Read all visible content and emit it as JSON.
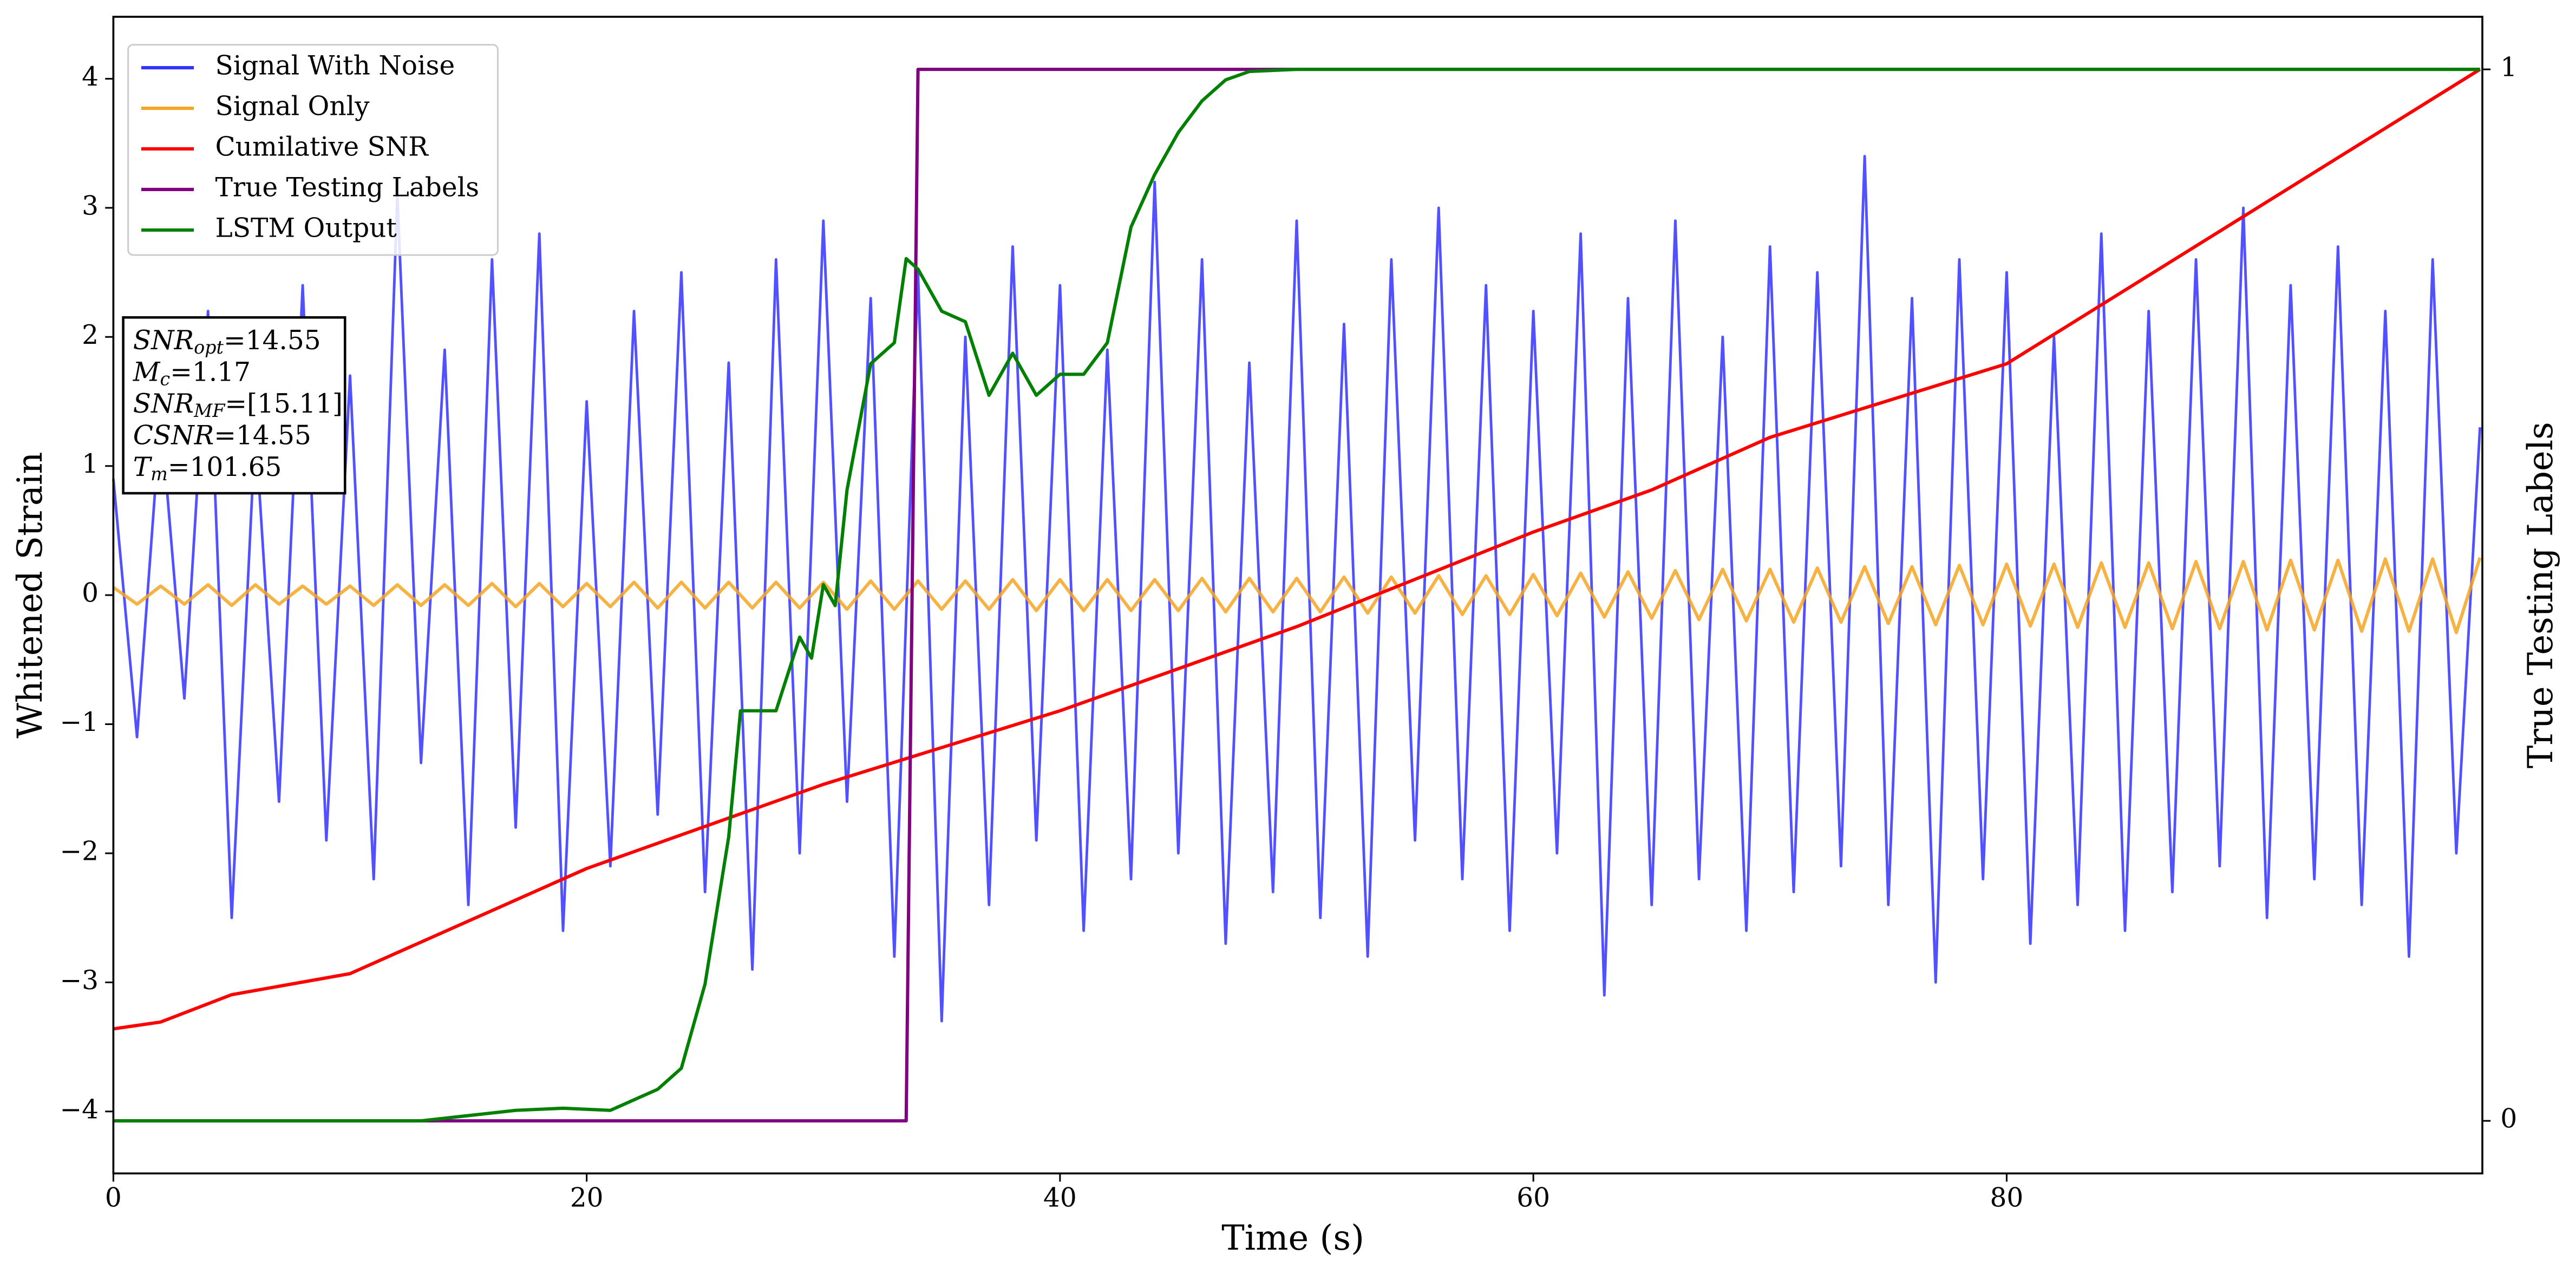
{
  "chart_data": {
    "type": "line",
    "xlabel": "Time (s)",
    "ylabel": "Whitened Strain",
    "y2label": "True Testing Labels",
    "xlim": [
      0,
      100.1
    ],
    "ylim": [
      -4.48,
      4.48
    ],
    "y2lim": [
      -0.05,
      1.05
    ],
    "xticks": [
      0,
      20,
      40,
      60,
      80
    ],
    "yticks": [
      {
        "value": -4,
        "label": "−4"
      },
      {
        "value": -3,
        "label": "−3"
      },
      {
        "value": -2,
        "label": "−2"
      },
      {
        "value": -1,
        "label": "−1"
      },
      0,
      1,
      2,
      3,
      4
    ],
    "y2ticks": [
      0,
      1
    ],
    "legend": "upper left",
    "x": [
      0,
      1,
      2,
      3,
      4,
      5,
      6,
      7,
      8,
      9,
      10,
      11,
      12,
      13,
      14,
      15,
      16,
      17,
      18,
      19,
      20,
      21,
      22,
      23,
      24,
      25,
      26,
      27,
      28,
      29,
      30,
      31,
      32,
      33,
      34,
      35,
      36,
      37,
      38,
      39,
      40,
      41,
      42,
      43,
      44,
      45,
      46,
      47,
      48,
      49,
      50,
      51,
      52,
      53,
      54,
      55,
      56,
      57,
      58,
      59,
      60,
      61,
      62,
      63,
      64,
      65,
      66,
      67,
      68,
      69,
      70,
      71,
      72,
      73,
      74,
      75,
      76,
      77,
      78,
      79,
      80,
      81,
      82,
      83,
      84,
      85,
      86,
      87,
      88,
      89,
      90,
      91,
      92,
      93,
      94,
      95,
      96,
      97,
      98,
      99,
      100
    ],
    "series": [
      {
        "name": "Signal With Noise",
        "color": "#3333ff",
        "values": [
          0.9,
          -1.1,
          1.4,
          -0.8,
          2.2,
          -2.5,
          1.3,
          -1.6,
          2.4,
          -1.9,
          1.7,
          -2.2,
          3.1,
          -1.3,
          1.9,
          -2.4,
          2.6,
          -1.8,
          2.8,
          -2.6,
          1.5,
          -2.1,
          2.2,
          -1.7,
          2.5,
          -2.3,
          1.8,
          -2.9,
          2.6,
          -2.0,
          2.9,
          -1.6,
          2.3,
          -2.8,
          2.5,
          -3.3,
          2.0,
          -2.4,
          2.7,
          -1.9,
          2.4,
          -2.6,
          1.9,
          -2.2,
          3.2,
          -2.0,
          2.6,
          -2.7,
          1.8,
          -2.3,
          2.9,
          -2.5,
          2.1,
          -2.8,
          2.6,
          -1.9,
          3.0,
          -2.2,
          2.4,
          -2.6,
          2.2,
          -2.0,
          2.8,
          -3.1,
          2.3,
          -2.4,
          2.9,
          -2.2,
          2.0,
          -2.6,
          2.7,
          -2.3,
          2.5,
          -2.1,
          3.4,
          -2.4,
          2.3,
          -3.0,
          2.6,
          -2.2,
          2.5,
          -2.7,
          2.0,
          -2.4,
          2.8,
          -2.6,
          2.2,
          -2.3,
          2.6,
          -2.1,
          3.0,
          -2.5,
          2.4,
          -2.2,
          2.7,
          -2.4,
          2.2,
          -2.8,
          2.6,
          -2.0,
          1.3
        ]
      },
      {
        "name": "Signal Only",
        "color": "#f5a623",
        "values": [
          0.06,
          -0.07,
          0.07,
          -0.07,
          0.08,
          -0.08,
          0.08,
          -0.07,
          0.07,
          -0.07,
          0.07,
          -0.08,
          0.08,
          -0.08,
          0.08,
          -0.08,
          0.09,
          -0.09,
          0.09,
          -0.09,
          0.09,
          -0.09,
          0.1,
          -0.1,
          0.1,
          -0.1,
          0.1,
          -0.1,
          0.1,
          -0.1,
          0.1,
          -0.11,
          0.11,
          -0.11,
          0.11,
          -0.11,
          0.11,
          -0.11,
          0.12,
          -0.12,
          0.12,
          -0.12,
          0.12,
          -0.12,
          0.12,
          -0.12,
          0.13,
          -0.13,
          0.13,
          -0.13,
          0.13,
          -0.13,
          0.14,
          -0.14,
          0.14,
          -0.14,
          0.15,
          -0.15,
          0.15,
          -0.15,
          0.16,
          -0.16,
          0.17,
          -0.17,
          0.18,
          -0.18,
          0.19,
          -0.19,
          0.2,
          -0.2,
          0.2,
          -0.21,
          0.21,
          -0.21,
          0.22,
          -0.22,
          0.22,
          -0.23,
          0.23,
          -0.23,
          0.24,
          -0.24,
          0.24,
          -0.25,
          0.25,
          -0.25,
          0.25,
          -0.26,
          0.26,
          -0.26,
          0.26,
          -0.27,
          0.27,
          -0.27,
          0.27,
          -0.28,
          0.28,
          -0.28,
          0.28,
          -0.29,
          0.29
        ]
      },
      {
        "name": "Cumilative SNR",
        "color": "#ff0000",
        "axis": "y2",
        "x": [
          0,
          2,
          5,
          10,
          13,
          20,
          30,
          40,
          50,
          60,
          65,
          70,
          80,
          90,
          100
        ],
        "values": [
          0.0875,
          0.094,
          0.12,
          0.14,
          0.17,
          0.24,
          0.32,
          0.39,
          0.47,
          0.56,
          0.6,
          0.65,
          0.72,
          0.86,
          1.0
        ]
      },
      {
        "name": "True Testing Labels",
        "color": "#800080",
        "axis": "y2",
        "x": [
          0,
          33.5,
          34,
          100
        ],
        "values": [
          0,
          0,
          1,
          1
        ]
      },
      {
        "name": "LSTM Output",
        "color": "#008000",
        "axis": "y2",
        "x": [
          0,
          13,
          15,
          17,
          19,
          21,
          22,
          23,
          24,
          25,
          26,
          26.5,
          27,
          28,
          29,
          29.5,
          30,
          30.5,
          31,
          32,
          33,
          33.5,
          34,
          35,
          36,
          37,
          38,
          39,
          40,
          41,
          42,
          43,
          44,
          45,
          46,
          47,
          48,
          50,
          60,
          100
        ],
        "values": [
          0,
          0,
          0.005,
          0.01,
          0.012,
          0.01,
          0.02,
          0.03,
          0.05,
          0.13,
          0.27,
          0.39,
          0.39,
          0.39,
          0.46,
          0.44,
          0.51,
          0.49,
          0.6,
          0.72,
          0.74,
          0.82,
          0.81,
          0.77,
          0.76,
          0.69,
          0.73,
          0.69,
          0.71,
          0.71,
          0.74,
          0.85,
          0.9,
          0.94,
          0.97,
          0.99,
          0.998,
          1.0,
          1.0,
          1.0
        ]
      }
    ],
    "annotation": [
      {
        "main": "SNR",
        "sub": "opt",
        "rest": "=14.55"
      },
      {
        "main": "M",
        "sub": "c",
        "rest": "=1.17"
      },
      {
        "main": "SNR",
        "sub": "MF",
        "rest": "=[15.11]"
      },
      {
        "main": "CSNR",
        "rest": "=14.55"
      },
      {
        "main": "T",
        "sub": "m",
        "rest": "=101.65"
      }
    ]
  }
}
